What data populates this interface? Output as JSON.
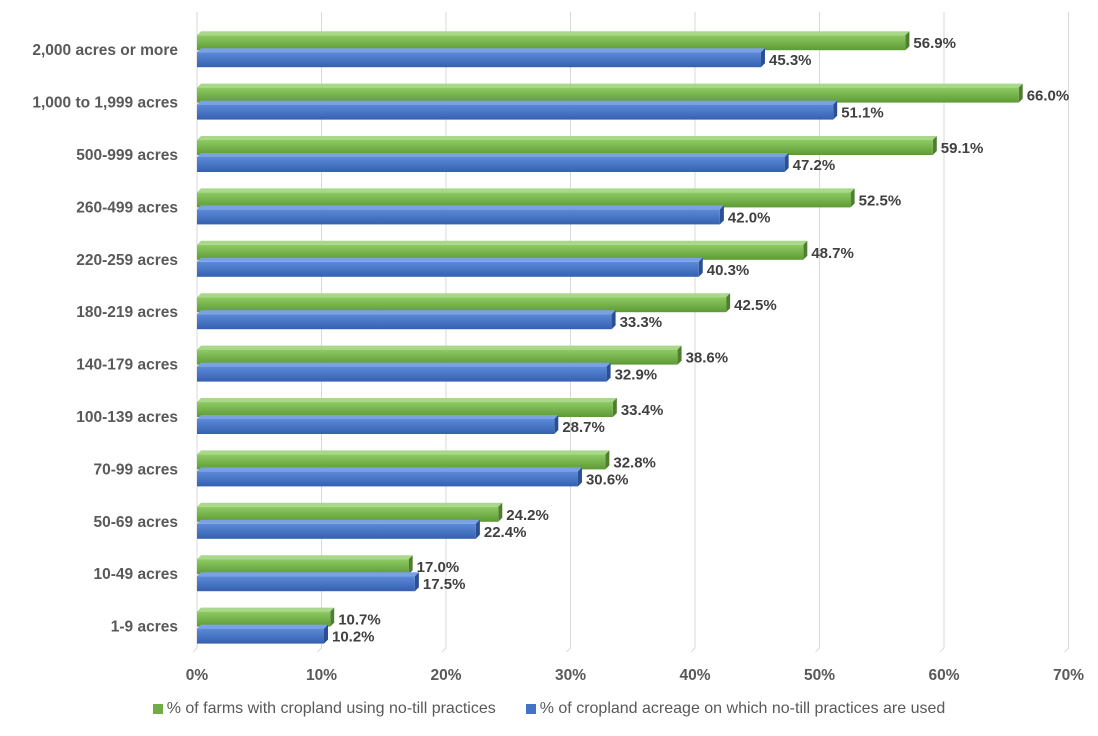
{
  "chart_data": {
    "type": "bar",
    "orientation": "horizontal",
    "title": "",
    "xlabel": "",
    "ylabel": "",
    "xlim": [
      0,
      70
    ],
    "x_ticks": [
      "0%",
      "10%",
      "20%",
      "30%",
      "40%",
      "50%",
      "60%",
      "70%"
    ],
    "grid": true,
    "legend_position": "bottom",
    "categories": [
      "2,000 acres or more",
      "1,000 to 1,999 acres",
      "500-999 acres",
      "260-499 acres",
      "220-259 acres",
      "180-219 acres",
      "140-179 acres",
      "100-139 acres",
      "70-99 acres",
      "50-69 acres",
      "10-49 acres",
      "1-9 acres"
    ],
    "series": [
      {
        "name": "% of farms with cropland using no-till practices",
        "color": "#70AD47",
        "values": [
          56.9,
          66.0,
          59.1,
          52.5,
          48.7,
          42.5,
          38.6,
          33.4,
          32.8,
          24.2,
          17.0,
          10.7
        ],
        "labels": [
          "56.9%",
          "66.0%",
          "59.1%",
          "52.5%",
          "48.7%",
          "42.5%",
          "38.6%",
          "33.4%",
          "32.8%",
          "24.2%",
          "17.0%",
          "10.7%"
        ]
      },
      {
        "name": "% of cropland acreage on which no-till practices are used",
        "color": "#4472C4",
        "values": [
          45.3,
          51.1,
          47.2,
          42.0,
          40.3,
          33.3,
          32.9,
          28.7,
          30.6,
          22.4,
          17.5,
          10.2
        ],
        "labels": [
          "45.3%",
          "51.1%",
          "47.2%",
          "42.0%",
          "40.3%",
          "33.3%",
          "32.9%",
          "28.7%",
          "30.6%",
          "22.4%",
          "17.5%",
          "10.2%"
        ]
      }
    ]
  }
}
